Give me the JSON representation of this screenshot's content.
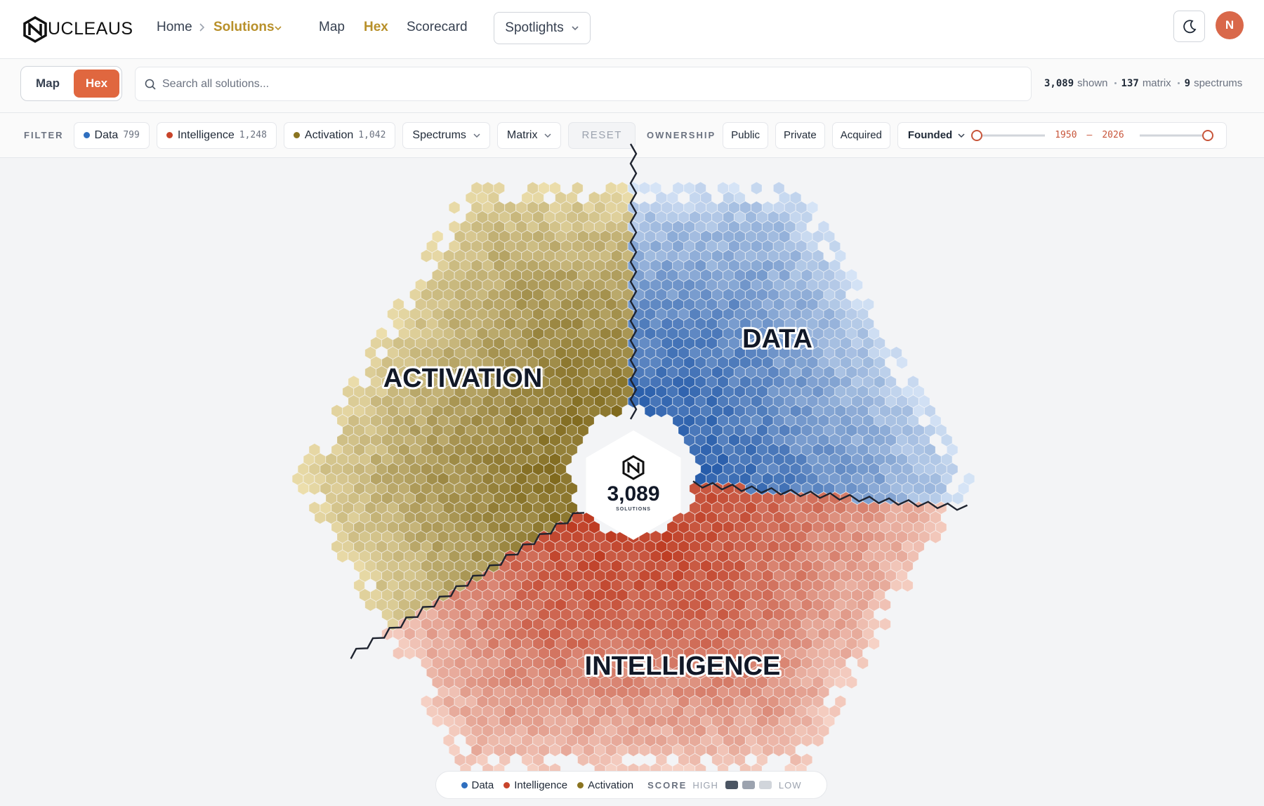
{
  "header": {
    "brand": "UCLEAUS",
    "nav": {
      "home": "Home",
      "solutions": "Solutions",
      "map": "Map",
      "hex": "Hex",
      "scorecard": "Scorecard",
      "spotlights": "Spotlights"
    },
    "avatar": "N"
  },
  "toolbar": {
    "view_toggle": [
      "Map",
      "Hex"
    ],
    "search_placeholder": "Search all solutions...",
    "stats": [
      {
        "value": "3,089",
        "label": "shown"
      },
      {
        "value": "137",
        "label": "matrix"
      },
      {
        "value": "9",
        "label": "spectrums"
      }
    ]
  },
  "filters": {
    "label": "FILTER",
    "categories": [
      {
        "name": "Data",
        "count": "799"
      },
      {
        "name": "Intelligence",
        "count": "1,248"
      },
      {
        "name": "Activation",
        "count": "1,042"
      }
    ],
    "dropdowns": [
      "Spectrums",
      "Matrix"
    ],
    "reset": "RESET",
    "ownership_label": "OWNERSHIP",
    "ownership": [
      "Public",
      "Private",
      "Acquired"
    ],
    "founded": {
      "label": "Founded",
      "from": "1950",
      "separator": "–",
      "to": "2026"
    }
  },
  "hexmap": {
    "sectors": [
      "ACTIVATION",
      "DATA",
      "INTELLIGENCE"
    ],
    "total": "3,089",
    "total_label": "SOLUTIONS"
  },
  "legend": {
    "items": [
      "Data",
      "Intelligence",
      "Activation"
    ],
    "score_label": "SCORE",
    "high": "HIGH",
    "low": "LOW"
  }
}
